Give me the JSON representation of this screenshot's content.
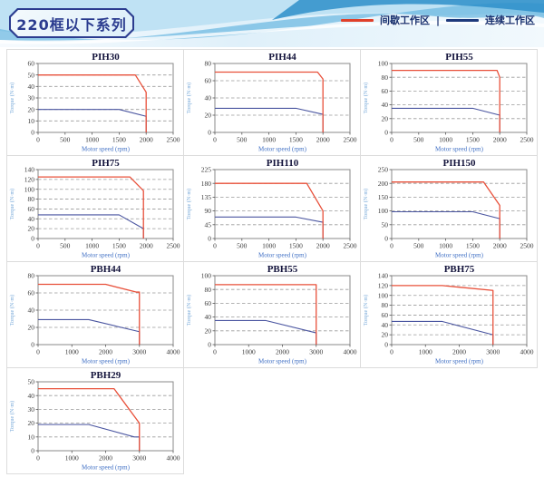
{
  "page": {
    "title_badge": "220框以下系列"
  },
  "legend": {
    "separator": "|",
    "items": [
      {
        "label": "间歇工作区",
        "zone": "intermittent",
        "color": "#e0402a"
      },
      {
        "label": "连续工作区",
        "zone": "continuous",
        "color": "#1e3a7c"
      }
    ]
  },
  "colors": {
    "intermittent_line": "#e8503a",
    "continuous_line": "#4a55a0",
    "plot_border": "#8a8a8a",
    "gridline": "#9a9a9a",
    "cell_border": "#dcdcdc"
  },
  "chart_data": [
    {
      "type": "line",
      "title": "PIH30",
      "xlabel": "Motor speed (rpm)",
      "ylabel": "Torque (N·m)",
      "xlim": [
        0,
        2500
      ],
      "ylim": [
        0,
        60
      ],
      "xticks": [
        0,
        500,
        1000,
        1500,
        2000,
        2500
      ],
      "yticks": [
        0,
        10,
        20,
        30,
        40,
        50,
        60
      ],
      "series": [
        {
          "name": "间歇工作区",
          "zone": "intermittent",
          "color": "#e8503a",
          "points": [
            [
              0,
              50
            ],
            [
              1800,
              50
            ],
            [
              2000,
              35
            ],
            [
              2000,
              0
            ]
          ]
        },
        {
          "name": "连续工作区",
          "zone": "continuous",
          "color": "#4a55a0",
          "points": [
            [
              0,
              20
            ],
            [
              1500,
              20
            ],
            [
              2000,
              14
            ],
            [
              2000,
              0
            ]
          ]
        }
      ]
    },
    {
      "type": "line",
      "title": "PIH44",
      "xlabel": "Motor speed (rpm)",
      "ylabel": "Torque (N·m)",
      "xlim": [
        0,
        2500
      ],
      "ylim": [
        0,
        80
      ],
      "xticks": [
        0,
        500,
        1000,
        1500,
        2000,
        2500
      ],
      "yticks": [
        0,
        20,
        40,
        60,
        80
      ],
      "series": [
        {
          "name": "间歇工作区",
          "zone": "intermittent",
          "color": "#e8503a",
          "points": [
            [
              0,
              70
            ],
            [
              1900,
              70
            ],
            [
              2000,
              62
            ],
            [
              2000,
              0
            ]
          ]
        },
        {
          "name": "连续工作区",
          "zone": "continuous",
          "color": "#4a55a0",
          "points": [
            [
              0,
              28
            ],
            [
              1500,
              28
            ],
            [
              2000,
              21
            ],
            [
              2000,
              0
            ]
          ]
        }
      ]
    },
    {
      "type": "line",
      "title": "PIH55",
      "xlabel": "Motor speed (rpm)",
      "ylabel": "Torque (N·m)",
      "xlim": [
        0,
        2500
      ],
      "ylim": [
        0,
        100
      ],
      "xticks": [
        0,
        500,
        1000,
        1500,
        2000,
        2500
      ],
      "yticks": [
        0,
        20,
        40,
        60,
        80,
        100
      ],
      "series": [
        {
          "name": "间歇工作区",
          "zone": "intermittent",
          "color": "#e8503a",
          "points": [
            [
              0,
              90
            ],
            [
              1950,
              90
            ],
            [
              2000,
              80
            ],
            [
              2000,
              0
            ]
          ]
        },
        {
          "name": "连续工作区",
          "zone": "continuous",
          "color": "#4a55a0",
          "points": [
            [
              0,
              35
            ],
            [
              1500,
              35
            ],
            [
              2000,
              25
            ],
            [
              2000,
              0
            ]
          ]
        }
      ]
    },
    {
      "type": "line",
      "title": "PIH75",
      "xlabel": "Motor speed (rpm)",
      "ylabel": "Torque (N·m)",
      "xlim": [
        0,
        2500
      ],
      "ylim": [
        0,
        140
      ],
      "xticks": [
        0,
        500,
        1000,
        1500,
        2000,
        2500
      ],
      "yticks": [
        0,
        20,
        40,
        60,
        80,
        100,
        120,
        140
      ],
      "series": [
        {
          "name": "间歇工作区",
          "zone": "intermittent",
          "color": "#e8503a",
          "points": [
            [
              0,
              125
            ],
            [
              1700,
              125
            ],
            [
              1950,
              97
            ],
            [
              1950,
              0
            ]
          ]
        },
        {
          "name": "连续工作区",
          "zone": "continuous",
          "color": "#4a55a0",
          "points": [
            [
              0,
              48
            ],
            [
              1500,
              48
            ],
            [
              1950,
              20
            ],
            [
              1950,
              0
            ]
          ]
        }
      ]
    },
    {
      "type": "line",
      "title": "PIH110",
      "xlabel": "Motor speed (rpm)",
      "ylabel": "Torque (N·m)",
      "xlim": [
        0,
        2500
      ],
      "ylim": [
        0,
        225
      ],
      "xticks": [
        0,
        500,
        1000,
        1500,
        2000,
        2500
      ],
      "yticks": [
        0,
        45,
        90,
        135,
        180,
        225
      ],
      "series": [
        {
          "name": "间歇工作区",
          "zone": "intermittent",
          "color": "#e8503a",
          "points": [
            [
              0,
              180
            ],
            [
              1700,
              180
            ],
            [
              2000,
              90
            ],
            [
              2000,
              0
            ]
          ]
        },
        {
          "name": "连续工作区",
          "zone": "continuous",
          "color": "#4a55a0",
          "points": [
            [
              0,
              70
            ],
            [
              1500,
              70
            ],
            [
              2000,
              53
            ],
            [
              2000,
              0
            ]
          ]
        }
      ]
    },
    {
      "type": "line",
      "title": "PIH150",
      "xlabel": "Motor speed (rpm)",
      "ylabel": "Torque (N·m)",
      "xlim": [
        0,
        2500
      ],
      "ylim": [
        0,
        250
      ],
      "xticks": [
        0,
        500,
        1000,
        1500,
        2000,
        2500
      ],
      "yticks": [
        0,
        50,
        100,
        150,
        200,
        250
      ],
      "series": [
        {
          "name": "间歇工作区",
          "zone": "intermittent",
          "color": "#e8503a",
          "points": [
            [
              0,
              205
            ],
            [
              1700,
              205
            ],
            [
              2000,
              120
            ],
            [
              2000,
              0
            ]
          ]
        },
        {
          "name": "连续工作区",
          "zone": "continuous",
          "color": "#4a55a0",
          "points": [
            [
              0,
              97
            ],
            [
              1500,
              97
            ],
            [
              2000,
              72
            ],
            [
              2000,
              0
            ]
          ]
        }
      ]
    },
    {
      "type": "line",
      "title": "PBH44",
      "xlabel": "Motor speed (rpm)",
      "ylabel": "Torque (N·m)",
      "xlim": [
        0,
        4000
      ],
      "ylim": [
        0,
        80
      ],
      "xticks": [
        0,
        1000,
        2000,
        3000,
        4000
      ],
      "yticks": [
        0,
        20,
        40,
        60,
        80
      ],
      "series": [
        {
          "name": "间歇工作区",
          "zone": "intermittent",
          "color": "#e8503a",
          "points": [
            [
              0,
              70
            ],
            [
              2000,
              70
            ],
            [
              2900,
              61
            ],
            [
              3000,
              61
            ],
            [
              3000,
              0
            ]
          ]
        },
        {
          "name": "连续工作区",
          "zone": "continuous",
          "color": "#4a55a0",
          "points": [
            [
              0,
              29
            ],
            [
              1500,
              29
            ],
            [
              3000,
              15
            ],
            [
              3000,
              0
            ]
          ]
        }
      ]
    },
    {
      "type": "line",
      "title": "PBH55",
      "xlabel": "Motor speed (rpm)",
      "ylabel": "Torque (N·m)",
      "xlim": [
        0,
        4000
      ],
      "ylim": [
        0,
        100
      ],
      "xticks": [
        0,
        1000,
        2000,
        3000,
        4000
      ],
      "yticks": [
        0,
        20,
        40,
        60,
        80,
        100
      ],
      "series": [
        {
          "name": "间歇工作区",
          "zone": "intermittent",
          "color": "#e8503a",
          "points": [
            [
              0,
              87
            ],
            [
              3000,
              87
            ],
            [
              3000,
              0
            ]
          ]
        },
        {
          "name": "连续工作区",
          "zone": "continuous",
          "color": "#4a55a0",
          "points": [
            [
              0,
              35
            ],
            [
              1500,
              35
            ],
            [
              3000,
              17
            ],
            [
              3000,
              0
            ]
          ]
        }
      ]
    },
    {
      "type": "line",
      "title": "PBH75",
      "xlabel": "Motor speed (rpm)",
      "ylabel": "Torque (N·m)",
      "xlim": [
        0,
        4000
      ],
      "ylim": [
        0,
        140
      ],
      "xticks": [
        0,
        1000,
        2000,
        3000,
        4000
      ],
      "yticks": [
        0,
        20,
        40,
        60,
        80,
        100,
        120,
        140
      ],
      "series": [
        {
          "name": "间歇工作区",
          "zone": "intermittent",
          "color": "#e8503a",
          "points": [
            [
              0,
              120
            ],
            [
              1500,
              120
            ],
            [
              3000,
              110
            ],
            [
              3000,
              0
            ]
          ]
        },
        {
          "name": "连续工作区",
          "zone": "continuous",
          "color": "#4a55a0",
          "points": [
            [
              0,
              47
            ],
            [
              1500,
              47
            ],
            [
              3000,
              20
            ],
            [
              3000,
              0
            ]
          ]
        }
      ]
    },
    {
      "type": "line",
      "title": "PBH29",
      "xlabel": "Motor speed (rpm)",
      "ylabel": "Torque (N·m)",
      "xlim": [
        0,
        4000
      ],
      "ylim": [
        0,
        50
      ],
      "xticks": [
        0,
        1000,
        2000,
        3000,
        4000
      ],
      "yticks": [
        0,
        10,
        20,
        30,
        40,
        50
      ],
      "series": [
        {
          "name": "间歇工作区",
          "zone": "intermittent",
          "color": "#e8503a",
          "points": [
            [
              0,
              45
            ],
            [
              2250,
              45
            ],
            [
              3000,
              20
            ],
            [
              3000,
              0
            ]
          ]
        },
        {
          "name": "连续工作区",
          "zone": "continuous",
          "color": "#4a55a0",
          "points": [
            [
              0,
              19
            ],
            [
              1500,
              19
            ],
            [
              2850,
              10
            ],
            [
              3000,
              10
            ],
            [
              3000,
              0
            ]
          ]
        }
      ]
    }
  ]
}
